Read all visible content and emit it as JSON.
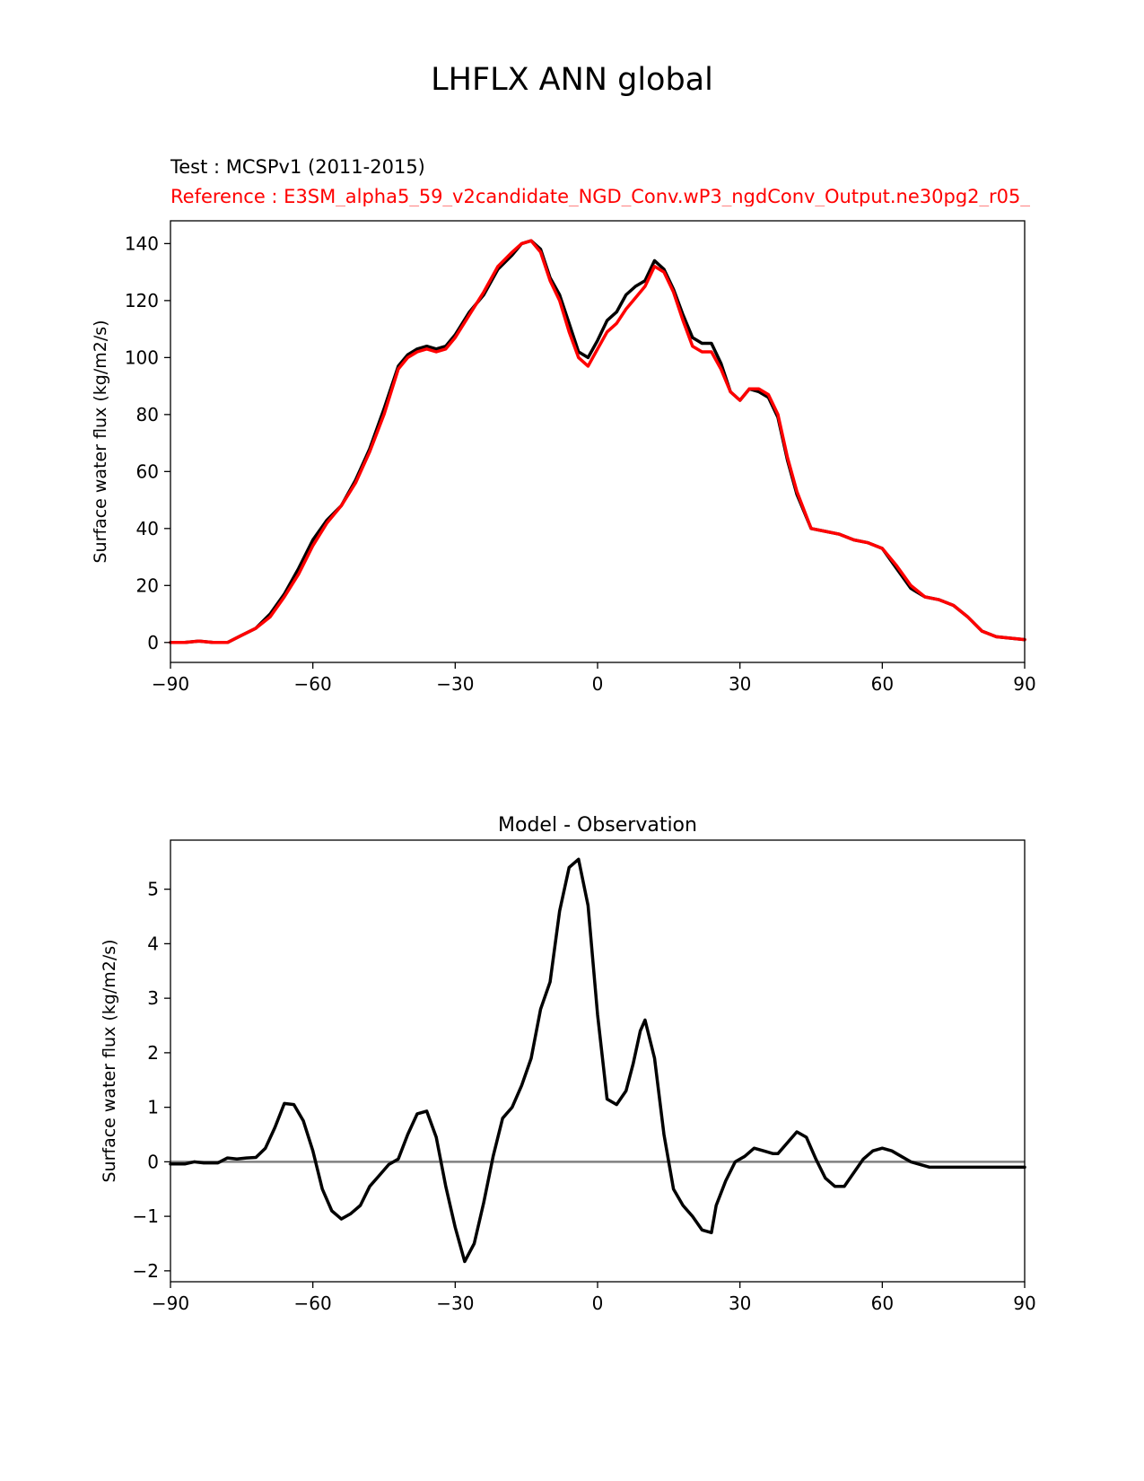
{
  "figure": {
    "title": "LHFLX ANN global",
    "test_label": "Test : MCSPv1 (2011-2015)",
    "reference_label": "Reference : E3SM_alpha5_59_v2candidate_NGD_Conv.wP3_ngdConv_Output.ne30pg2_r05_"
  },
  "colors": {
    "test": "#000000",
    "reference": "#ff0000",
    "zero_line": "#808080"
  },
  "chart_data": [
    {
      "type": "line",
      "title": "",
      "xlabel": "",
      "ylabel": "Surface water flux (kg/m2/s)",
      "xlim": [
        -90,
        90
      ],
      "ylim": [
        -7,
        148
      ],
      "xticks": [
        -90,
        -60,
        -30,
        0,
        30,
        60,
        90
      ],
      "xtick_labels": [
        "−90",
        "−60",
        "−30",
        "0",
        "30",
        "60",
        "90"
      ],
      "yticks": [
        0,
        20,
        40,
        60,
        80,
        100,
        120,
        140
      ],
      "ytick_labels": [
        "0",
        "20",
        "40",
        "60",
        "80",
        "100",
        "120",
        "140"
      ],
      "grid": false,
      "x": [
        -90,
        -87,
        -84,
        -81,
        -78,
        -75,
        -72,
        -69,
        -66,
        -63,
        -60,
        -57,
        -54,
        -51,
        -48,
        -45,
        -42,
        -40,
        -38,
        -36,
        -34,
        -32,
        -30,
        -27,
        -24,
        -21,
        -18,
        -16,
        -14,
        -12,
        -10,
        -8,
        -6,
        -4,
        -2,
        0,
        2,
        4,
        6,
        8,
        10,
        12,
        14,
        16,
        18,
        20,
        22,
        24,
        26,
        28,
        30,
        32,
        34,
        36,
        38,
        40,
        42,
        45,
        48,
        51,
        54,
        57,
        60,
        63,
        66,
        69,
        72,
        75,
        78,
        81,
        84,
        87,
        90
      ],
      "series": [
        {
          "name": "Test",
          "color": "#000000",
          "values": [
            0,
            0,
            0.5,
            0,
            0,
            2.5,
            5,
            10,
            17,
            26,
            36,
            43,
            48,
            57,
            68,
            82,
            97,
            101,
            103,
            104,
            103,
            104,
            108,
            116,
            122,
            131,
            136,
            140,
            141,
            138,
            128,
            122,
            112,
            102,
            100,
            106,
            113,
            116,
            122,
            125,
            127,
            134,
            131,
            124,
            115,
            107,
            105,
            105,
            98,
            88,
            85,
            89,
            88,
            86,
            79,
            64,
            52,
            40,
            39,
            38,
            36,
            35,
            33,
            26,
            19,
            16,
            15,
            13,
            9,
            4,
            2,
            1.5,
            1
          ]
        },
        {
          "name": "Reference",
          "color": "#ff0000",
          "values": [
            0,
            0,
            0.5,
            0,
            0,
            2.5,
            5,
            9,
            16,
            24,
            34,
            42,
            48,
            56,
            67,
            80,
            96,
            100,
            102,
            103,
            102,
            103,
            107,
            115,
            123,
            132,
            137,
            140,
            141,
            137,
            127,
            120,
            109,
            100,
            97,
            103,
            109,
            112,
            117,
            121,
            125,
            132,
            130,
            123,
            113,
            104,
            102,
            102,
            96,
            88,
            85,
            89,
            89,
            87,
            80,
            65,
            53,
            40,
            39,
            38,
            36,
            35,
            33,
            27,
            20,
            16,
            15,
            13,
            9,
            4,
            2,
            1.5,
            1
          ]
        }
      ]
    },
    {
      "type": "line",
      "title": "Model - Observation",
      "xlabel": "",
      "ylabel": "Surface water flux (kg/m2/s)",
      "xlim": [
        -90,
        90
      ],
      "ylim": [
        -2.2,
        5.9
      ],
      "xticks": [
        -90,
        -60,
        -30,
        0,
        30,
        60,
        90
      ],
      "xtick_labels": [
        "−90",
        "−60",
        "−30",
        "0",
        "30",
        "60",
        "90"
      ],
      "yticks": [
        -2,
        -1,
        0,
        1,
        2,
        3,
        4,
        5
      ],
      "ytick_labels": [
        "−2",
        "−1",
        "0",
        "1",
        "2",
        "3",
        "4",
        "5"
      ],
      "grid": false,
      "zero_line": 0,
      "x": [
        -90,
        -87,
        -85,
        -83,
        -80,
        -78,
        -76,
        -74,
        -72,
        -70,
        -68,
        -66,
        -64,
        -62,
        -60,
        -58,
        -56,
        -54,
        -52,
        -50,
        -48,
        -46,
        -44,
        -42,
        -40,
        -38,
        -36,
        -34,
        -32,
        -30,
        -28,
        -26,
        -24,
        -22,
        -20,
        -18,
        -16,
        -14,
        -12,
        -10,
        -8,
        -6,
        -4,
        -2,
        0,
        2,
        4,
        6,
        7.5,
        9,
        10,
        12,
        14,
        16,
        18,
        20,
        22,
        24,
        25,
        27,
        29,
        31,
        33,
        35,
        37,
        38,
        40,
        42,
        44,
        46,
        48,
        50,
        52,
        54,
        56,
        58,
        60,
        62,
        64,
        66,
        68,
        70,
        72,
        74,
        76,
        78,
        80,
        82,
        84,
        86,
        88,
        90
      ],
      "series": [
        {
          "name": "Model - Observation",
          "color": "#000000",
          "values": [
            -0.04,
            -0.04,
            0.0,
            -0.02,
            -0.02,
            0.07,
            0.05,
            0.07,
            0.08,
            0.25,
            0.63,
            1.07,
            1.05,
            0.75,
            0.2,
            -0.5,
            -0.9,
            -1.05,
            -0.95,
            -0.8,
            -0.45,
            -0.25,
            -0.05,
            0.05,
            0.5,
            0.88,
            0.93,
            0.45,
            -0.45,
            -1.2,
            -1.83,
            -1.5,
            -0.75,
            0.1,
            0.8,
            1.0,
            1.4,
            1.9,
            2.8,
            3.3,
            4.6,
            5.4,
            5.55,
            4.7,
            2.7,
            1.15,
            1.05,
            1.3,
            1.8,
            2.4,
            2.6,
            1.9,
            0.5,
            -0.5,
            -0.8,
            -1.0,
            -1.25,
            -1.3,
            -0.8,
            -0.35,
            0.0,
            0.1,
            0.25,
            0.2,
            0.15,
            0.15,
            0.35,
            0.55,
            0.45,
            0.05,
            -0.3,
            -0.45,
            -0.45,
            -0.2,
            0.05,
            0.2,
            0.25,
            0.2,
            0.1,
            0.0,
            -0.05,
            -0.1,
            -0.1,
            -0.1,
            -0.1,
            -0.1,
            -0.1,
            -0.1,
            -0.1,
            -0.1,
            -0.1,
            -0.1
          ]
        }
      ]
    }
  ]
}
